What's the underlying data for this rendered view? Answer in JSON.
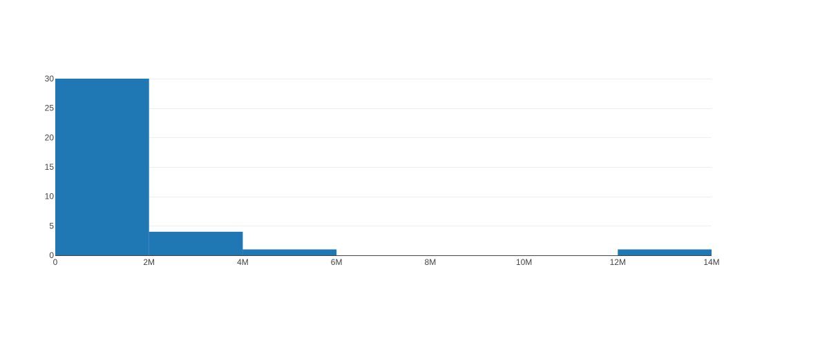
{
  "chart_data": {
    "type": "bar",
    "bar_color": "#1f77b4",
    "grid": true,
    "bins": [
      {
        "x0": 0,
        "x1": 2000000,
        "count": 30
      },
      {
        "x0": 2000000,
        "x1": 4000000,
        "count": 4
      },
      {
        "x0": 4000000,
        "x1": 6000000,
        "count": 1
      },
      {
        "x0": 6000000,
        "x1": 8000000,
        "count": 0
      },
      {
        "x0": 8000000,
        "x1": 10000000,
        "count": 0
      },
      {
        "x0": 10000000,
        "x1": 12000000,
        "count": 0
      },
      {
        "x0": 12000000,
        "x1": 14000000,
        "count": 1
      }
    ],
    "xlim": [
      0,
      14000000
    ],
    "ylim": [
      0,
      30
    ],
    "x_ticks": [
      {
        "value": 0,
        "label": "0"
      },
      {
        "value": 2000000,
        "label": "2M"
      },
      {
        "value": 4000000,
        "label": "4M"
      },
      {
        "value": 6000000,
        "label": "6M"
      },
      {
        "value": 8000000,
        "label": "8M"
      },
      {
        "value": 10000000,
        "label": "10M"
      },
      {
        "value": 12000000,
        "label": "12M"
      },
      {
        "value": 14000000,
        "label": "14M"
      }
    ],
    "y_ticks": [
      {
        "value": 0,
        "label": "0"
      },
      {
        "value": 5,
        "label": "5"
      },
      {
        "value": 10,
        "label": "10"
      },
      {
        "value": 15,
        "label": "15"
      },
      {
        "value": 20,
        "label": "20"
      },
      {
        "value": 25,
        "label": "25"
      },
      {
        "value": 30,
        "label": "30"
      }
    ]
  }
}
